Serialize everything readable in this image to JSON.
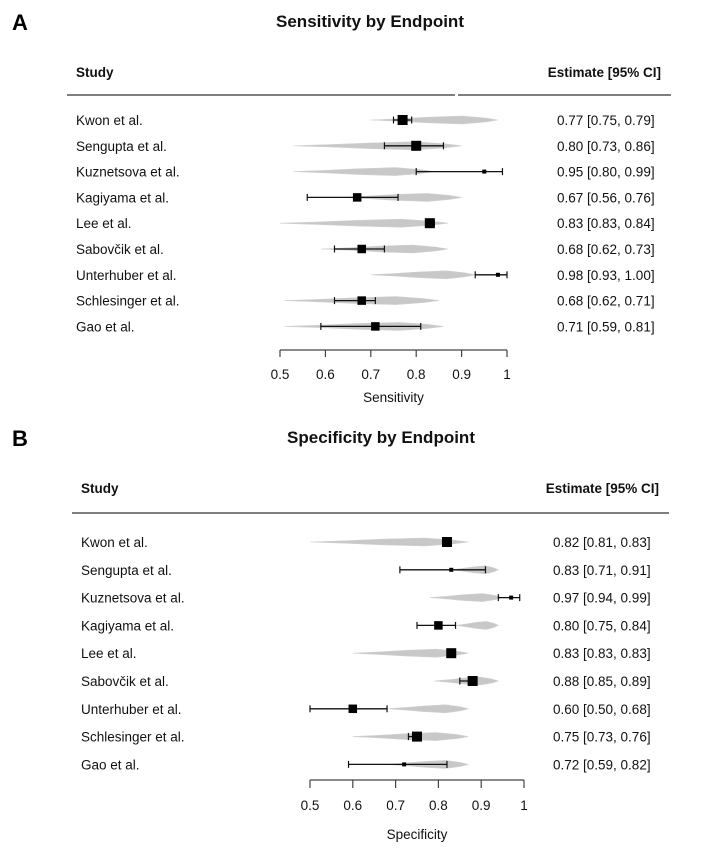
{
  "chart_data": [
    {
      "panel": "A",
      "type": "forest",
      "title": "Sensitivity by Endpoint",
      "header_left": "Study",
      "header_right": "Estimate [95% CI]",
      "xlabel": "Sensitivity",
      "xlim": [
        0.5,
        1.0
      ],
      "ticks": [
        0.5,
        0.6,
        0.7,
        0.8,
        0.9,
        1.0
      ],
      "tick_labels": [
        "0.5",
        "0.6",
        "0.7",
        "0.8",
        "0.9",
        "1"
      ],
      "studies": [
        {
          "name": "Kwon et al.",
          "estimate": 0.77,
          "lower": 0.75,
          "upper": 0.79,
          "label": "0.77 [0.75, 0.79]",
          "dist": [
            0.7,
            0.98
          ],
          "weight": "large"
        },
        {
          "name": "Sengupta et al.",
          "estimate": 0.8,
          "lower": 0.73,
          "upper": 0.86,
          "label": "0.80 [0.73, 0.86]",
          "dist": [
            0.53,
            0.9
          ],
          "weight": "large"
        },
        {
          "name": "Kuznetsova et al.",
          "estimate": 0.95,
          "lower": 0.8,
          "upper": 0.99,
          "label": "0.95 [0.80, 0.99]",
          "dist": [
            0.53,
            0.84
          ],
          "weight": "small"
        },
        {
          "name": "Kagiyama et al.",
          "estimate": 0.67,
          "lower": 0.56,
          "upper": 0.76,
          "label": "0.67 [0.56, 0.76]",
          "dist": [
            0.63,
            0.9
          ],
          "weight": "medium"
        },
        {
          "name": "Lee et al.",
          "estimate": 0.83,
          "lower": 0.83,
          "upper": 0.84,
          "label": "0.83 [0.83, 0.84]",
          "dist": [
            0.5,
            0.87
          ],
          "weight": "large"
        },
        {
          "name": "Sabovčik et al.",
          "estimate": 0.68,
          "lower": 0.62,
          "upper": 0.73,
          "label": "0.68 [0.62, 0.73]",
          "dist": [
            0.59,
            0.87
          ],
          "weight": "medium"
        },
        {
          "name": "Unterhuber et al.",
          "estimate": 0.98,
          "lower": 0.93,
          "upper": 1.0,
          "label": "0.98 [0.93, 1.00]",
          "dist": [
            0.7,
            0.93
          ],
          "weight": "small"
        },
        {
          "name": "Schlesinger et al.",
          "estimate": 0.68,
          "lower": 0.62,
          "upper": 0.71,
          "label": "0.68 [0.62, 0.71]",
          "dist": [
            0.51,
            0.85
          ],
          "weight": "medium"
        },
        {
          "name": "Gao et al.",
          "estimate": 0.71,
          "lower": 0.59,
          "upper": 0.81,
          "label": "0.71 [0.59, 0.81]",
          "dist": [
            0.51,
            0.86
          ],
          "weight": "medium"
        }
      ]
    },
    {
      "panel": "B",
      "type": "forest",
      "title": "Specificity by Endpoint",
      "header_left": "Study",
      "header_right": "Estimate [95% CI]",
      "xlabel": "Specificity",
      "xlim": [
        0.5,
        1.0
      ],
      "ticks": [
        0.5,
        0.6,
        0.7,
        0.8,
        0.9,
        1.0
      ],
      "tick_labels": [
        "0.5",
        "0.6",
        "0.7",
        "0.8",
        "0.9",
        "1"
      ],
      "studies": [
        {
          "name": "Kwon et al.",
          "estimate": 0.82,
          "lower": 0.81,
          "upper": 0.83,
          "label": "0.82 [0.81, 0.83]",
          "dist": [
            0.5,
            0.87
          ],
          "weight": "large"
        },
        {
          "name": "Sengupta et al.",
          "estimate": 0.83,
          "lower": 0.71,
          "upper": 0.91,
          "label": "0.83 [0.71, 0.91]",
          "dist": [
            0.83,
            0.94
          ],
          "weight": "small"
        },
        {
          "name": "Kuznetsova et al.",
          "estimate": 0.97,
          "lower": 0.94,
          "upper": 0.99,
          "label": "0.97 [0.94, 0.99]",
          "dist": [
            0.78,
            0.95
          ],
          "weight": "small"
        },
        {
          "name": "Kagiyama et al.",
          "estimate": 0.8,
          "lower": 0.75,
          "upper": 0.84,
          "label": "0.80 [0.75, 0.84]",
          "dist": [
            0.84,
            0.94
          ],
          "weight": "medium"
        },
        {
          "name": "Lee et al.",
          "estimate": 0.83,
          "lower": 0.83,
          "upper": 0.83,
          "label": "0.83 [0.83, 0.83]",
          "dist": [
            0.6,
            0.87
          ],
          "weight": "large"
        },
        {
          "name": "Sabovčik et al.",
          "estimate": 0.88,
          "lower": 0.85,
          "upper": 0.89,
          "label": "0.88 [0.85, 0.89]",
          "dist": [
            0.79,
            0.94
          ],
          "weight": "large"
        },
        {
          "name": "Unterhuber et al.",
          "estimate": 0.6,
          "lower": 0.5,
          "upper": 0.68,
          "label": "0.60 [0.50, 0.68]",
          "dist": [
            0.68,
            0.87
          ],
          "weight": "medium"
        },
        {
          "name": "Schlesinger et al.",
          "estimate": 0.75,
          "lower": 0.73,
          "upper": 0.76,
          "label": "0.75 [0.73, 0.76]",
          "dist": [
            0.6,
            0.87
          ],
          "weight": "large"
        },
        {
          "name": "Gao et al.",
          "estimate": 0.72,
          "lower": 0.59,
          "upper": 0.82,
          "label": "0.72 [0.59, 0.82]",
          "dist": [
            0.68,
            0.87
          ],
          "weight": "small"
        }
      ]
    }
  ]
}
